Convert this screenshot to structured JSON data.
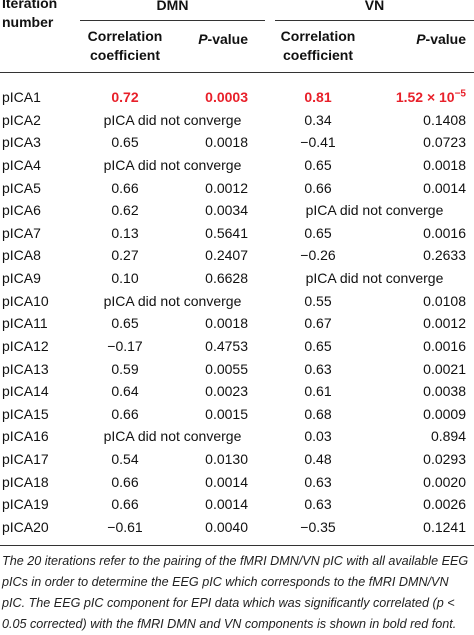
{
  "header": {
    "iteration": "Iteration number",
    "groups": [
      "DMN",
      "VN"
    ],
    "sub": [
      "Correlation coefficient",
      "P",
      "-value"
    ]
  },
  "highlight_color": "#e8202a",
  "rows": [
    {
      "label": "pICA1",
      "highlight": true,
      "dmn": [
        "0.72",
        "0.0003"
      ],
      "vn": [
        "0.81",
        {
          "base": "1.52 × 10",
          "exp": "−5"
        }
      ]
    },
    {
      "label": "pICA2",
      "dmn": "pICA did not converge",
      "vn": [
        "0.34",
        "0.1408"
      ]
    },
    {
      "label": "pICA3",
      "dmn": [
        "0.65",
        "0.0018"
      ],
      "vn": [
        "−0.41",
        "0.0723"
      ]
    },
    {
      "label": "pICA4",
      "dmn": "pICA did not converge",
      "vn": [
        "0.65",
        "0.0018"
      ]
    },
    {
      "label": "pICA5",
      "dmn": [
        "0.66",
        "0.0012"
      ],
      "vn": [
        "0.66",
        "0.0014"
      ]
    },
    {
      "label": "pICA6",
      "dmn": [
        "0.62",
        "0.0034"
      ],
      "vn": "pICA did not converge"
    },
    {
      "label": "pICA7",
      "dmn": [
        "0.13",
        "0.5641"
      ],
      "vn": [
        "0.65",
        "0.0016"
      ]
    },
    {
      "label": "pICA8",
      "dmn": [
        "0.27",
        "0.2407"
      ],
      "vn": [
        "−0.26",
        "0.2633"
      ]
    },
    {
      "label": "pICA9",
      "dmn": [
        "0.10",
        "0.6628"
      ],
      "vn": "pICA did not converge"
    },
    {
      "label": "pICA10",
      "dmn": "pICA did not converge",
      "vn": [
        "0.55",
        "0.0108"
      ]
    },
    {
      "label": "pICA11",
      "dmn": [
        "0.65",
        "0.0018"
      ],
      "vn": [
        "0.67",
        "0.0012"
      ]
    },
    {
      "label": "pICA12",
      "dmn": [
        "−0.17",
        "0.4753"
      ],
      "vn": [
        "0.65",
        "0.0016"
      ]
    },
    {
      "label": "pICA13",
      "dmn": [
        "0.59",
        "0.0055"
      ],
      "vn": [
        "0.63",
        "0.0021"
      ]
    },
    {
      "label": "pICA14",
      "dmn": [
        "0.64",
        "0.0023"
      ],
      "vn": [
        "0.61",
        "0.0038"
      ]
    },
    {
      "label": "pICA15",
      "dmn": [
        "0.66",
        "0.0015"
      ],
      "vn": [
        "0.68",
        "0.0009"
      ]
    },
    {
      "label": "pICA16",
      "dmn": "pICA did not converge",
      "vn": [
        "0.03",
        "0.894"
      ]
    },
    {
      "label": "pICA17",
      "dmn": [
        "0.54",
        "0.0130"
      ],
      "vn": [
        "0.48",
        "0.0293"
      ]
    },
    {
      "label": "pICA18",
      "dmn": [
        "0.66",
        "0.0014"
      ],
      "vn": [
        "0.63",
        "0.0020"
      ]
    },
    {
      "label": "pICA19",
      "dmn": [
        "0.66",
        "0.0014"
      ],
      "vn": [
        "0.63",
        "0.0026"
      ]
    },
    {
      "label": "pICA20",
      "dmn": [
        "−0.61",
        "0.0040"
      ],
      "vn": [
        "−0.35",
        "0.1241"
      ]
    }
  ],
  "footnote": [
    "The 20 iterations refer to the pairing of the fMRI DMN/VN pIC with all available EEG pICs in order to determine the EEG pIC which corresponds to the fMRI DMN/VN pIC. The EEG pIC component for EPI data which was significantly correlated (",
    "p",
    " < 0.05 corrected) with the fMRI DMN and VN components is shown in bold red font."
  ]
}
